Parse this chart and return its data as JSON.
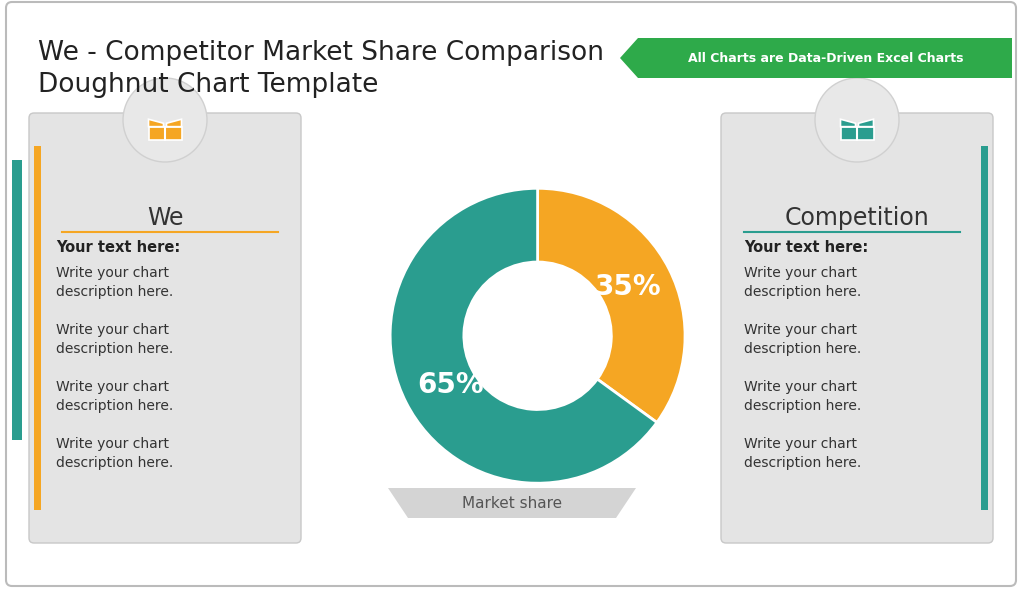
{
  "title_line1": "We - Competitor Market Share Comparison",
  "title_line2": "Doughnut Chart Template",
  "banner_text": "All Charts are Data-Driven Excel Charts",
  "banner_color": "#2EAA4A",
  "banner_text_color": "#ffffff",
  "background_color": "#ffffff",
  "card_bg_color": "#e4e4e4",
  "card_border_color": "#c8c8c8",
  "left_card_title": "We",
  "right_card_title": "Competition",
  "left_icon_color": "#F5A623",
  "right_icon_color": "#2A9D8F",
  "left_line_color": "#F5A623",
  "right_line_color": "#2A9D8F",
  "donut_colors": [
    "#F5A623",
    "#2A9D8F"
  ],
  "donut_values": [
    35,
    65
  ],
  "donut_labels": [
    "35%",
    "65%"
  ],
  "donut_label_fontsize": 20,
  "chart_label": "Market share",
  "card_text_bold": "Your text here:",
  "card_text_lines": [
    "Write your chart\ndescription here.",
    "Write your chart\ndescription here.",
    "Write your chart\ndescription here.",
    "Write your chart\ndescription here."
  ],
  "title_fontsize": 19,
  "card_title_fontsize": 17,
  "card_text_fontsize": 10.5,
  "outer_border_color": "#bbbbbb",
  "left_accent_color": "#F5A623",
  "right_accent_color": "#2A9D8F",
  "teal_left_bar_color": "#2A9D8F"
}
